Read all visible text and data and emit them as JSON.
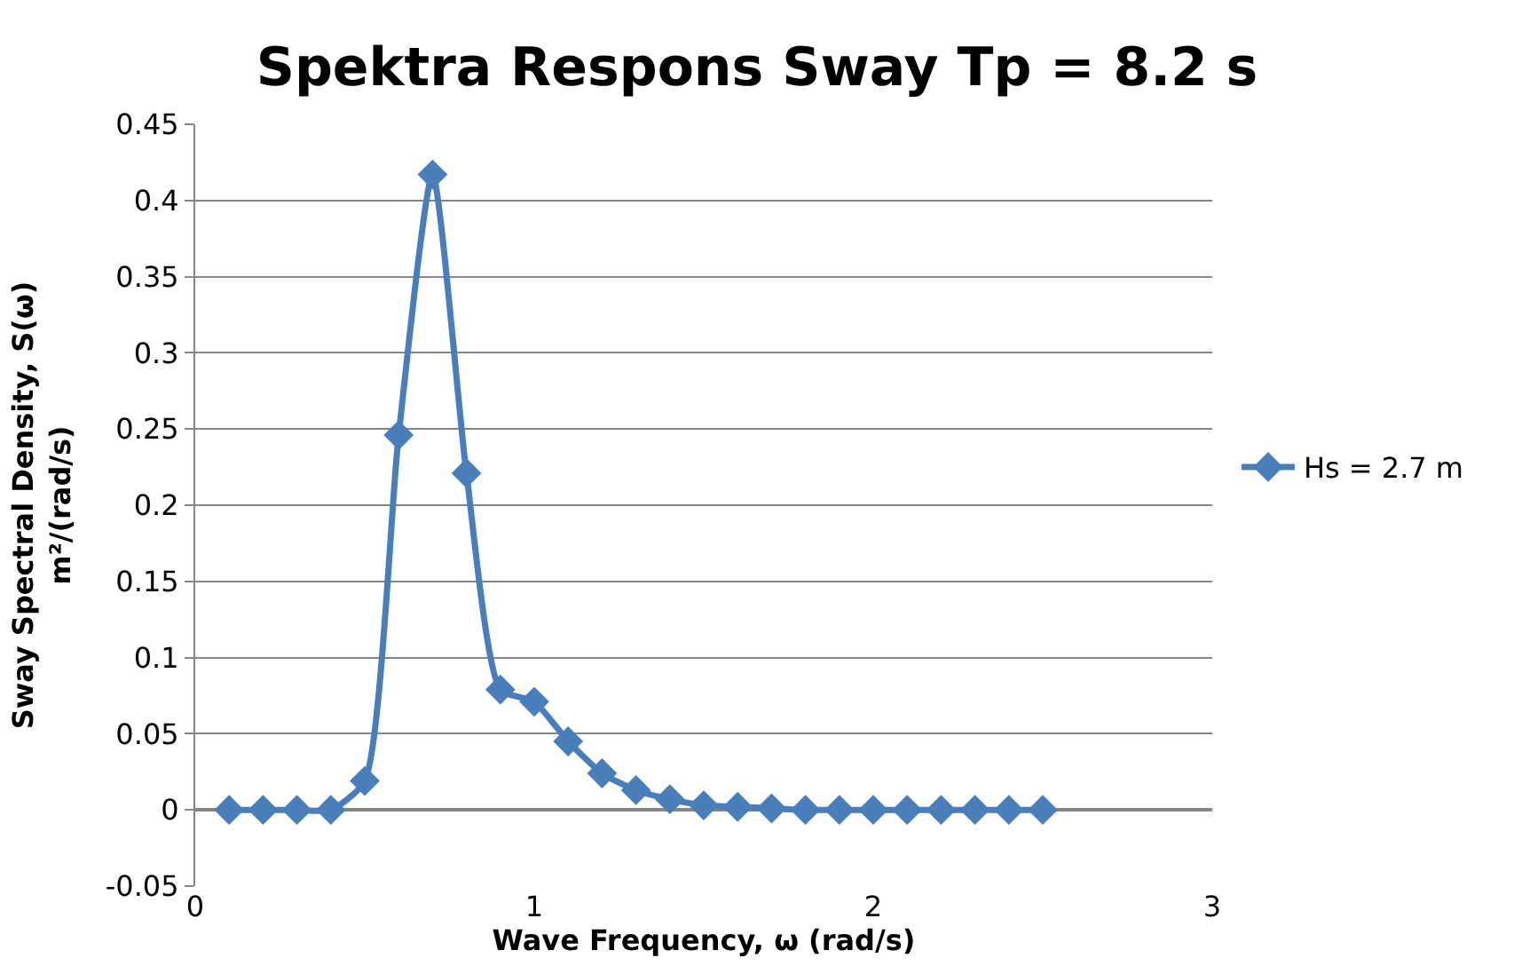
{
  "chart_data": {
    "type": "line",
    "title": "Spektra Respons Sway Tp = 8.2 s",
    "xlabel": "Wave Frequency, ω (rad/s)",
    "ylabel": "Sway Spectral Density, S(ω)\nm²/(rad/s)",
    "x": [
      0.1,
      0.2,
      0.3,
      0.4,
      0.5,
      0.6,
      0.7,
      0.8,
      0.9,
      1.0,
      1.1,
      1.2,
      1.3,
      1.4,
      1.5,
      1.6,
      1.7,
      1.8,
      1.9,
      2.0,
      2.1,
      2.2,
      2.3,
      2.4,
      2.5
    ],
    "series": [
      {
        "name": "Hs = 2.7 m",
        "color": "#4a7ebb",
        "values": [
          0,
          0,
          0,
          0,
          0.019,
          0.246,
          0.417,
          0.221,
          0.079,
          0.071,
          0.045,
          0.024,
          0.013,
          0.007,
          0.003,
          0.002,
          0.001,
          0,
          0,
          0,
          0,
          0,
          0,
          0,
          0
        ]
      }
    ],
    "xlim": [
      0,
      3
    ],
    "xticks": [
      0,
      1,
      2,
      3
    ],
    "ylim": [
      -0.05,
      0.45
    ],
    "yticks": [
      -0.05,
      0,
      0.05,
      0.1,
      0.15,
      0.2,
      0.25,
      0.3,
      0.35,
      0.4,
      0.45
    ],
    "grid": "y",
    "legend": "right",
    "marker": "diamond",
    "line_style": "solid"
  }
}
